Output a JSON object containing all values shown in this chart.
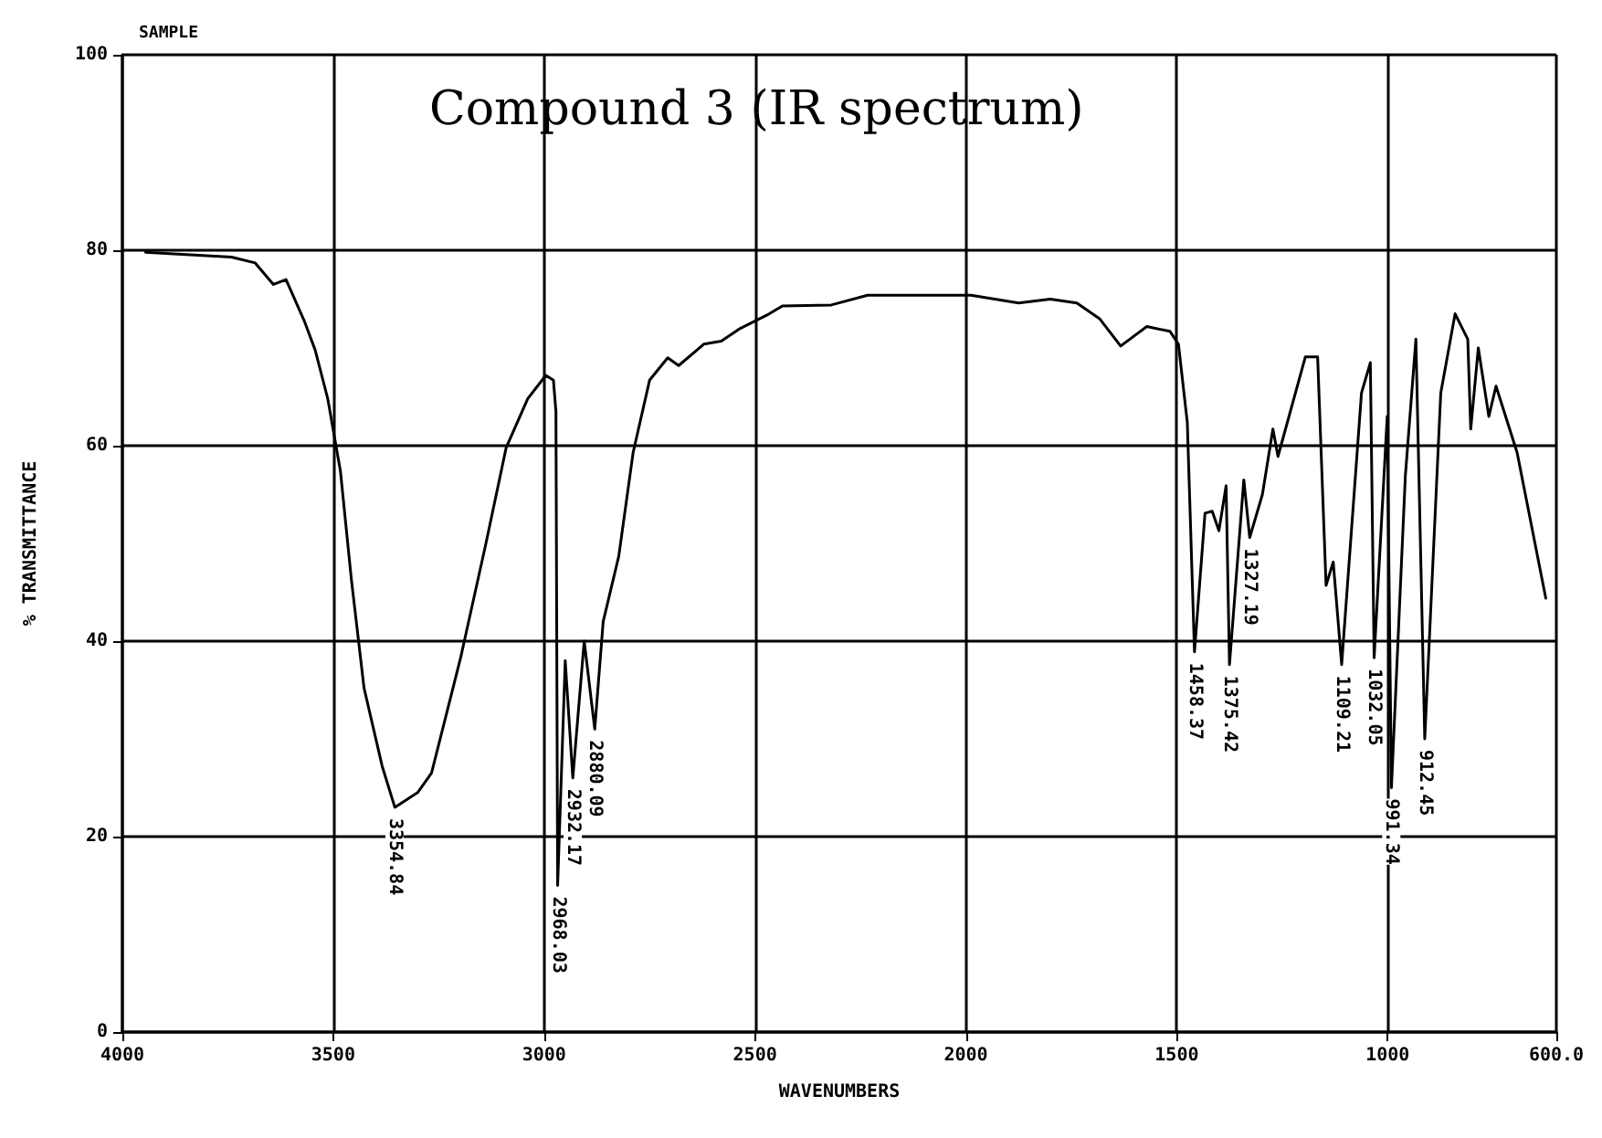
{
  "chart_data": {
    "type": "line",
    "title": "Compound 3 (IR spectrum)",
    "xlabel": "WAVENUMBERS",
    "ylabel": "% TRANSMITTANCE",
    "x": [
      3945,
      3741,
      3685,
      3642,
      3612,
      3569,
      3543,
      3513,
      3483,
      3457,
      3427,
      3384,
      3354,
      3300,
      3267,
      3198,
      3138,
      3090,
      3039,
      2996,
      2978,
      2972,
      2968,
      2950,
      2932,
      2905,
      2880,
      2860,
      2823,
      2789,
      2750,
      2707,
      2681,
      2621,
      2580,
      2535,
      2466,
      2435,
      2319,
      2233,
      1988,
      1875,
      1800,
      1737,
      1683,
      1633,
      1571,
      1516,
      1496,
      1475,
      1458,
      1433,
      1416,
      1400,
      1383,
      1375,
      1341,
      1327,
      1297,
      1272,
      1260,
      1195,
      1166,
      1146,
      1129,
      1109,
      1062,
      1041,
      1032,
      1001,
      991,
      958,
      933,
      912,
      874,
      840,
      810,
      803,
      785,
      760,
      743,
      693,
      625
    ],
    "series": [
      {
        "color": "#000000",
        "values": [
          79.8,
          79.3,
          78.7,
          76.5,
          77,
          72.8,
          69.8,
          64.8,
          57.4,
          46.3,
          35.2,
          27.2,
          23,
          24.5,
          26.5,
          38.3,
          50,
          59.8,
          64.8,
          67.2,
          66.7,
          63.5,
          15,
          38,
          26,
          40,
          31,
          42,
          48.7,
          59.3,
          66.7,
          69,
          68.2,
          70.4,
          70.7,
          72,
          73.5,
          74.3,
          74.4,
          75.4,
          75.4,
          74.6,
          75,
          74.6,
          73,
          70.2,
          72.2,
          71.7,
          70.4,
          62.4,
          38.9,
          53.1,
          53.3,
          51.3,
          55.9,
          37.6,
          56.5,
          50.6,
          55,
          61.7,
          58.9,
          69.1,
          69.1,
          45.7,
          48.1,
          37.6,
          65.4,
          68.5,
          38.3,
          63,
          25,
          56.9,
          70.9,
          30,
          65.4,
          73.5,
          70.9,
          61.7,
          70,
          63,
          66.1,
          59.3,
          44.4
        ]
      }
    ],
    "xlim": [
      4000,
      600
    ],
    "xticks": [
      4000,
      3500,
      3000,
      2500,
      2000,
      1500,
      1000,
      {
        "value": 600,
        "label": "600.0"
      }
    ],
    "ylim": [
      0,
      100
    ],
    "yticks": [
      0,
      20,
      40,
      60,
      80,
      100
    ],
    "grid": true,
    "marker": "none",
    "line_style": "solid",
    "annotations": [
      "SAMPLE",
      {
        "text": "3354.84",
        "x": 3354.84,
        "y": 23
      },
      {
        "text": "2968.03",
        "x": 2968.03,
        "y": 15
      },
      {
        "text": "2932.17",
        "x": 2932.17,
        "y": 26
      },
      {
        "text": "2880.09",
        "x": 2880.09,
        "y": 31
      },
      {
        "text": "1458.37",
        "x": 1458.37,
        "y": 38.9
      },
      {
        "text": "1375.42",
        "x": 1375.42,
        "y": 37.6
      },
      {
        "text": "1327.19",
        "x": 1327.19,
        "y": 50.6
      },
      {
        "text": "1109.21",
        "x": 1109.21,
        "y": 37.6
      },
      {
        "text": "1032.05",
        "x": 1032.05,
        "y": 38.3
      },
      {
        "text": "991.34",
        "x": 991.34,
        "y": 25
      },
      {
        "text": "912.45",
        "x": 912.45,
        "y": 30
      }
    ]
  }
}
